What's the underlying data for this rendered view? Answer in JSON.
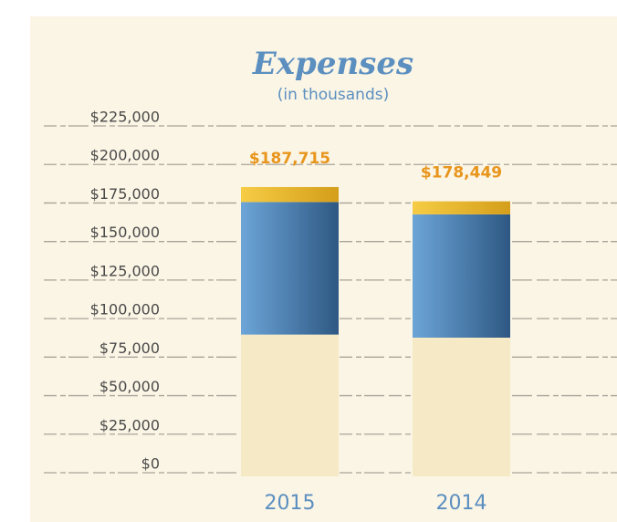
{
  "chart_data": {
    "type": "stacked-bar",
    "title": "Expenses",
    "subtitle": "(in thousands)",
    "categories": [
      "2015",
      "2014"
    ],
    "series": [
      {
        "color": "#f5e9c6",
        "values": [
          92000,
          90000
        ]
      },
      {
        "color": "#4f86b8",
        "values": [
          86000,
          80000
        ]
      },
      {
        "color": "#e9b62c",
        "values": [
          9715,
          8449
        ]
      }
    ],
    "totals": [
      187715,
      178449
    ],
    "total_labels": [
      "$187,715",
      "$178,449"
    ],
    "ylim": [
      0,
      225000
    ],
    "yticks": [
      {
        "value": 0,
        "label": "$0"
      },
      {
        "value": 25000,
        "label": "$25,000"
      },
      {
        "value": 50000,
        "label": "$50,000"
      },
      {
        "value": 75000,
        "label": "$75,000"
      },
      {
        "value": 100000,
        "label": "$100,000"
      },
      {
        "value": 125000,
        "label": "$125,000"
      },
      {
        "value": 150000,
        "label": "$150,000"
      },
      {
        "value": 175000,
        "label": "$175,000"
      },
      {
        "value": 200000,
        "label": "$200,000"
      },
      {
        "value": 225000,
        "label": "$225,000"
      }
    ],
    "grid": true
  }
}
